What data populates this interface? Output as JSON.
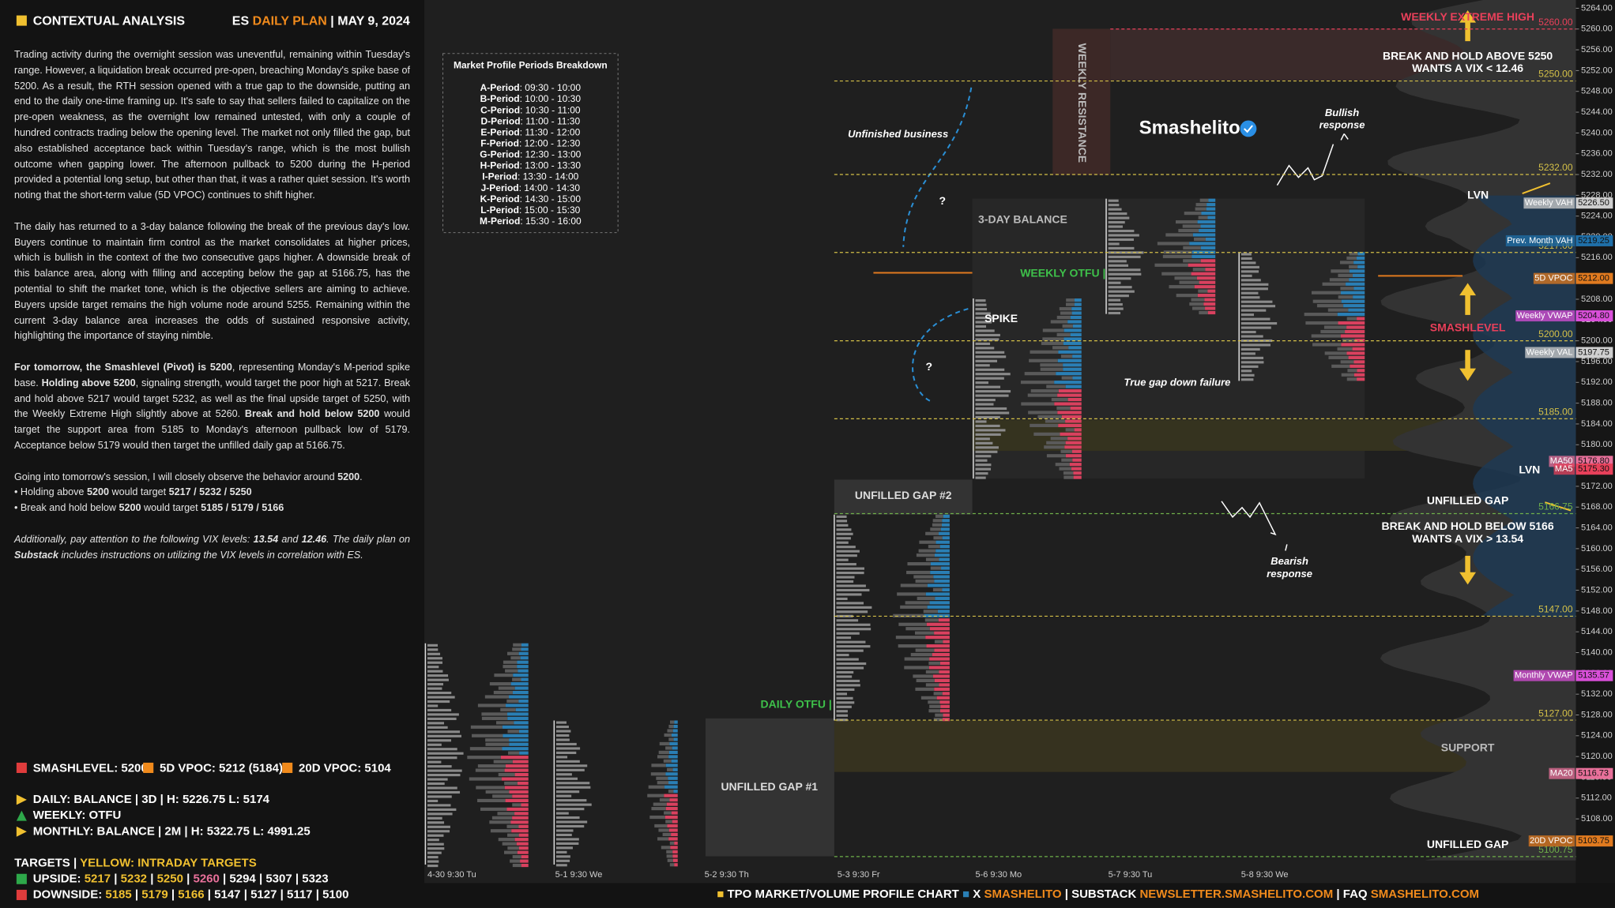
{
  "header": {
    "title": "CONTEXTUAL ANALYSIS",
    "plan": [
      "ES",
      "DAILY PLAN",
      "| MAY 9, 2024"
    ]
  },
  "analysis": {
    "paragraphs": [
      {
        "runs": [
          {
            "text": "Trading activity during the overnight session was uneventful, remaining within Tuesday's range. However, a liquidation break occurred pre-open, breaching Monday's spike base of 5200. As a result, the RTH session opened with a true gap to the downside, putting an end to the daily one-time framing up. It's safe to say that sellers failed to capitalize on the pre-open weakness, as the overnight low remained untested, with only a couple of hundred contracts trading below the opening level. The market not only filled the gap, but also established acceptance back within Tuesday's range, which is the most bullish outcome when gapping lower. The afternoon pullback to 5200 during the H-period provided a potential long setup, but other than that, it was a rather quiet session. It's worth noting that the short-term value (5D VPOC) continues to shift higher."
          }
        ]
      },
      {
        "runs": [
          {
            "text": "The daily has returned to a 3-day balance following the break of the previous day's low. Buyers continue to maintain firm control as the market consolidates at higher prices, which is bullish in the context of the two consecutive gaps higher. A downside break of this balance area, along with filling and accepting below the gap at 5166.75, has the potential to shift the market tone, which is the objective sellers are aiming to achieve. Buyers upside target remains the high volume node around 5255. Remaining within the current 3-day balance area increases the odds of sustained responsive activity, highlighting the importance of staying nimble."
          }
        ]
      },
      {
        "runs": [
          {
            "text": "For tomorrow, the Smashlevel (Pivot) is 5200",
            "bold": true
          },
          {
            "text": ", representing Monday's M-period spike base. "
          },
          {
            "text": "Holding above 5200",
            "bold": true
          },
          {
            "text": ", signaling strength, would target the poor high at 5217. Break and hold above 5217 would target 5232, as well as the final upside target of 5250, with the Weekly Extreme High slightly above at 5260. "
          },
          {
            "text": "Break and hold below 5200",
            "bold": true
          },
          {
            "text": " would target the support area from 5185 to Monday's afternoon pullback low of 5179. Acceptance below 5179 would then target the unfilled daily gap at 5166.75."
          }
        ]
      },
      {
        "runs": [
          {
            "text": "Going into tomorrow's session, I will closely observe the behavior around "
          },
          {
            "text": "5200",
            "bold": true
          },
          {
            "text": "."
          }
        ],
        "tight": true
      },
      {
        "runs": [
          {
            "text": "• Holding above "
          },
          {
            "text": "5200",
            "bold": true
          },
          {
            "text": " would target "
          },
          {
            "text": "5217 / 5232 / 5250",
            "bold": true
          }
        ],
        "tight": true
      },
      {
        "runs": [
          {
            "text": "• Break and hold below "
          },
          {
            "text": "5200",
            "bold": true
          },
          {
            "text": " would target "
          },
          {
            "text": "5185 / 5179 / 5166",
            "bold": true
          }
        ]
      },
      {
        "runs": [
          {
            "text": "Additionally, pay attention to the following VIX levels: "
          },
          {
            "text": "13.54",
            "bold": true
          },
          {
            "text": " and "
          },
          {
            "text": "12.46",
            "bold": true
          },
          {
            "text": ". The daily plan on "
          },
          {
            "text": "Substack",
            "bold": true
          },
          {
            "text": " includes instructions on utilizing the VIX levels in correlation with ES."
          }
        ],
        "italic": true
      }
    ]
  },
  "summary": {
    "separator": "|",
    "levels": [
      {
        "text": "SMASHLEVEL: 5200",
        "color": "#e03c3c"
      },
      {
        "text": "5D VPOC: 5212 (5184)",
        "color": "#f08a1c"
      },
      {
        "text": "20D VPOC: 5104",
        "color": "#f08a1c"
      }
    ],
    "structure": [
      {
        "text": "DAILY: BALANCE | 3D | H: 5226.75 L: 5174",
        "marker": "right",
        "color": "#f0c030"
      },
      {
        "text": "WEEKLY: OTFU",
        "marker": "up",
        "color": "#2ea84a"
      },
      {
        "text": "MONTHLY: BALANCE | 2M | H: 5322.75 L: 4991.25",
        "marker": "right",
        "color": "#f0c030"
      }
    ],
    "targets_title": [
      {
        "text": "TARGETS",
        "color": "#ffffff"
      },
      {
        "text": "YELLOW: INTRADAY TARGETS",
        "color": "#f0c030"
      }
    ],
    "upside": {
      "label": "UPSIDE:",
      "color": "#2ea84a",
      "targets": [
        {
          "text": "5217",
          "color": "#f0c030"
        },
        {
          "text": "5232",
          "color": "#f0c030"
        },
        {
          "text": "5250",
          "color": "#f0c030"
        },
        {
          "text": "5260",
          "color": "#e8709a"
        },
        {
          "text": "5294",
          "color": "#ffffff"
        },
        {
          "text": "5307",
          "color": "#ffffff"
        },
        {
          "text": "5323",
          "color": "#ffffff"
        }
      ]
    },
    "downside": {
      "label": "DOWNSIDE:",
      "color": "#e03c3c",
      "targets": [
        {
          "text": "5185",
          "color": "#f0c030"
        },
        {
          "text": "5179",
          "color": "#f0c030"
        },
        {
          "text": "5166",
          "color": "#f0c030"
        },
        {
          "text": "5147",
          "color": "#ffffff"
        },
        {
          "text": "5127",
          "color": "#ffffff"
        },
        {
          "text": "5117",
          "color": "#ffffff"
        },
        {
          "text": "5100",
          "color": "#ffffff"
        }
      ]
    }
  },
  "periods": {
    "title": "Market Profile Periods Breakdown",
    "rows": [
      {
        "name": "A-Period",
        "time": ": 09:30 - 10:00"
      },
      {
        "name": "B-Period",
        "time": ": 10:00 - 10:30"
      },
      {
        "name": "C-Period",
        "time": ": 10:30 - 11:00"
      },
      {
        "name": "D-Period",
        "time": ": 11:00 - 11:30"
      },
      {
        "name": "E-Period",
        "time": ": 11:30 - 12:00"
      },
      {
        "name": "F-Period",
        "time": ": 12:00 - 12:30"
      },
      {
        "name": "G-Period",
        "time": ": 12:30 - 13:00"
      },
      {
        "name": "H-Period",
        "time": ": 13:00 - 13:30"
      },
      {
        "name": "I-Period",
        "time": ": 13:30 - 14:00"
      },
      {
        "name": "J-Period",
        "time": ": 14:00 - 14:30"
      },
      {
        "name": "K-Period",
        "time": ": 14:30 - 15:00"
      },
      {
        "name": "L-Period",
        "time": ": 15:00 - 15:30"
      },
      {
        "name": "M-Period",
        "time": ": 15:30 - 16:00"
      }
    ]
  },
  "chart_data": {
    "type": "tpo",
    "categories": [
      "4-30 9:30 Tu",
      "5-1 9:30 We",
      "5-2 9:30 Th",
      "5-3 9:30 Fr",
      "5-6 9:30 Mo",
      "5-7 9:30 Tu",
      "5-8 9:30 We"
    ],
    "ylim": [
      5100,
      5264
    ],
    "yticks": [
      {
        "value": 5264,
        "label": "5264.00"
      },
      {
        "value": 5260,
        "label": "5260.00"
      },
      {
        "value": 5256,
        "label": "5256.00"
      },
      {
        "value": 5252,
        "label": "5252.00"
      },
      {
        "value": 5248,
        "label": "5248.00"
      },
      {
        "value": 5244,
        "label": "5244.00"
      },
      {
        "value": 5240,
        "label": "5240.00"
      },
      {
        "value": 5236,
        "label": "5236.00"
      },
      {
        "value": 5232,
        "label": "5232.00"
      },
      {
        "value": 5228,
        "label": "5228.00"
      },
      {
        "value": 5224,
        "label": "5224.00"
      },
      {
        "value": 5220,
        "label": "5220.00"
      },
      {
        "value": 5216,
        "label": "5216.00"
      },
      {
        "value": 5212,
        "label": "5212.00"
      },
      {
        "value": 5208,
        "label": "5208.00"
      },
      {
        "value": 5204,
        "label": "5204.00"
      },
      {
        "value": 5200,
        "label": "5200.00"
      },
      {
        "value": 5196,
        "label": "5196.00"
      },
      {
        "value": 5192,
        "label": "5192.00"
      },
      {
        "value": 5188,
        "label": "5188.00"
      },
      {
        "value": 5184,
        "label": "5184.00"
      },
      {
        "value": 5180,
        "label": "5180.00"
      },
      {
        "value": 5176,
        "label": "5176.00"
      },
      {
        "value": 5172,
        "label": "5172.00"
      },
      {
        "value": 5168,
        "label": "5168.00"
      },
      {
        "value": 5164,
        "label": "5164.00"
      },
      {
        "value": 5160,
        "label": "5160.00"
      },
      {
        "value": 5156,
        "label": "5156.00"
      },
      {
        "value": 5152,
        "label": "5152.00"
      },
      {
        "value": 5148,
        "label": "5148.00"
      },
      {
        "value": 5144,
        "label": "5144.00"
      },
      {
        "value": 5140,
        "label": "5140.00"
      },
      {
        "value": 5136,
        "label": "5136.00"
      },
      {
        "value": 5132,
        "label": "5132.00"
      },
      {
        "value": 5128,
        "label": "5128.00"
      },
      {
        "value": 5124,
        "label": "5124.00"
      },
      {
        "value": 5120,
        "label": "5120.00"
      },
      {
        "value": 5116,
        "label": "5116.00"
      },
      {
        "value": 5112,
        "label": "5112.00"
      },
      {
        "value": 5108,
        "label": "5108.00"
      },
      {
        "value": 5104,
        "label": "5104.00"
      }
    ],
    "levels": [
      {
        "value": 5260,
        "label": "5260.00",
        "color": "#e8405a"
      },
      {
        "value": 5250,
        "label": "5250.00",
        "color": "#d4c048"
      },
      {
        "value": 5232,
        "label": "5232.00",
        "color": "#d4c048"
      },
      {
        "value": 5217,
        "label": "5217.00",
        "color": "#d4c048"
      },
      {
        "value": 5200,
        "label": "5200.00",
        "color": "#d4c048"
      },
      {
        "value": 5185,
        "label": "5185.00",
        "color": "#d4c048"
      },
      {
        "value": 5166.75,
        "label": "5166.75",
        "color": "#6fb04a"
      },
      {
        "value": 5147,
        "label": "5147.00",
        "color": "#d4c048"
      },
      {
        "value": 5127,
        "label": "5127.00",
        "color": "#d4c048"
      },
      {
        "value": 5100.75,
        "label": "5100.75",
        "color": "#6fb04a"
      }
    ],
    "price_tags": [
      {
        "name": "Weekly VAH",
        "value": 5226.5,
        "label": "5226.50",
        "color": "#cfcfcf"
      },
      {
        "name": "Prev. Month VAH",
        "value": 5219.25,
        "label": "5219.25",
        "color": "#1f6fa8"
      },
      {
        "name": "5D VPOC",
        "value": 5212,
        "label": "5212.00",
        "color": "#e07a1f"
      },
      {
        "name": "Weekly VWAP",
        "value": 5204.8,
        "label": "5204.80",
        "color": "#d94fd9"
      },
      {
        "name": "Weekly VAL",
        "value": 5197.75,
        "label": "5197.75",
        "color": "#cfcfcf"
      },
      {
        "name": "MA50",
        "value": 5176.8,
        "label": "5176.80",
        "color": "#e8709a"
      },
      {
        "name": "MA5",
        "value": 5175.3,
        "label": "5175.30",
        "color": "#e8405a"
      },
      {
        "name": "Monthly VWAP",
        "value": 5135.57,
        "label": "5135.57",
        "color": "#d94fd9"
      },
      {
        "name": "MA20",
        "value": 5116.73,
        "label": "5116.73",
        "color": "#e8709a"
      },
      {
        "name": "20D VPOC",
        "value": 5103.75,
        "label": "5103.75",
        "color": "#e07a1f"
      }
    ],
    "annotations": [
      {
        "text": [
          "WEEKLY EXTREME HIGH"
        ],
        "x": 1425,
        "y": 17,
        "color": "#e8405a"
      },
      {
        "text": [
          "BREAK AND HOLD ABOVE 5250",
          "WANTS A VIX < 12.46"
        ],
        "x": 1425,
        "y": 55,
        "color": "#ffffff"
      },
      {
        "text": [
          "SMASHLEVEL"
        ],
        "x": 1425,
        "y": 319,
        "color": "#e8405a"
      },
      {
        "text": [
          "UNFILLED GAP"
        ],
        "x": 1425,
        "y": 487,
        "color": "#ffffff"
      },
      {
        "text": [
          "BREAK AND HOLD BELOW 5166",
          "WANTS A VIX > 13.54"
        ],
        "x": 1425,
        "y": 512,
        "color": "#ffffff"
      },
      {
        "text": [
          "SUPPORT"
        ],
        "x": 1425,
        "y": 727,
        "color": "#bbbbbb"
      },
      {
        "text": [
          "UNFILLED GAP"
        ],
        "x": 1425,
        "y": 821,
        "color": "#ffffff"
      },
      {
        "text": [
          "LVN"
        ],
        "x": 1435,
        "y": 190,
        "color": "#ffffff"
      },
      {
        "text": [
          "LVN"
        ],
        "x": 1485,
        "y": 457,
        "color": "#ffffff"
      },
      {
        "text": [
          "Bullish",
          "response"
        ],
        "x": 1303,
        "y": 110,
        "color": "#ffffff"
      },
      {
        "text": [
          "Bearish",
          "response"
        ],
        "x": 1252,
        "y": 546,
        "color": "#ffffff"
      },
      {
        "text": [
          "Unfinished business"
        ],
        "x": 872,
        "y": 131,
        "color": "#ffffff"
      },
      {
        "text": [
          "?"
        ],
        "x": 915,
        "y": 196,
        "color": "#ffffff"
      },
      {
        "text": [
          "?"
        ],
        "x": 902,
        "y": 357,
        "color": "#ffffff"
      },
      {
        "text": [
          "3-DAY BALANCE"
        ],
        "x": 993,
        "y": 214,
        "color": "#bbbbbb"
      },
      {
        "text": [
          "WEEKLY OTFU |"
        ],
        "x": 1032,
        "y": 266,
        "color": "#3ec04a"
      },
      {
        "text": [
          "SPIKE"
        ],
        "x": 972,
        "y": 310,
        "color": "#ffffff"
      },
      {
        "text": [
          "True gap down failure"
        ],
        "x": 1143,
        "y": 372,
        "color": "#ffffff"
      },
      {
        "text": [
          "UNFILLED GAP #2"
        ],
        "x": 877,
        "y": 482,
        "color": "#dddddd"
      },
      {
        "text": [
          "UNFILLED GAP #1"
        ],
        "x": 747,
        "y": 765,
        "color": "#dddddd"
      },
      {
        "text": [
          "DAILY OTFU |"
        ],
        "x": 773,
        "y": 685,
        "color": "#3ec04a"
      }
    ],
    "weekly_resistance": "WEEKLY RESISTANCE",
    "brand": "Smashelito"
  },
  "footer": {
    "separator": "|",
    "items": [
      {
        "text": "TPO MARKET/VOLUME PROFILE CHART",
        "color": "#ffffff",
        "marker": "#f0c030"
      },
      {
        "text": "X",
        "color": "#ffffff",
        "marker": "#2a7fb5"
      },
      {
        "text": "SMASHELITO",
        "color": "#f08a1c"
      },
      {
        "text": "SUBSTACK",
        "color": "#ffffff",
        "sep": true
      },
      {
        "text": "NEWSLETTER.SMASHELITO.COM",
        "color": "#f08a1c"
      },
      {
        "text": "FAQ",
        "color": "#ffffff",
        "sep": true
      },
      {
        "text": "SMASHELITO.COM",
        "color": "#f08a1c"
      }
    ]
  }
}
